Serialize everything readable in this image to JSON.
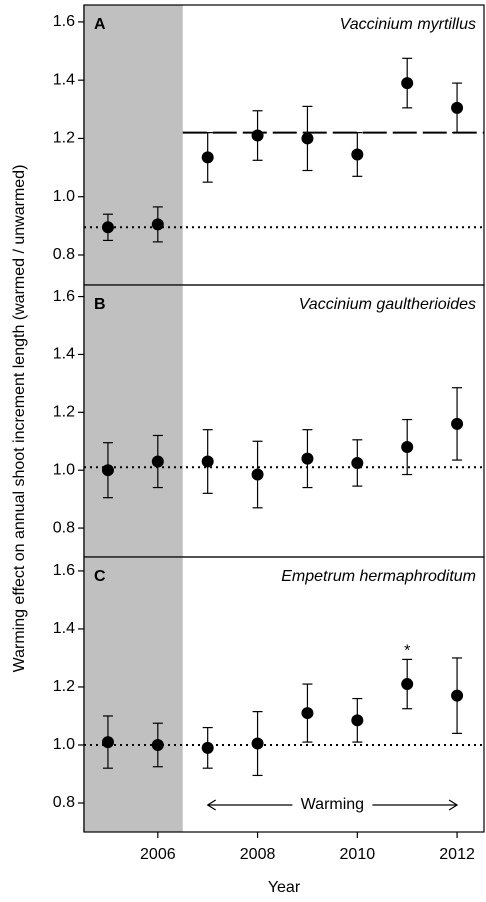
{
  "chart_data": [
    {
      "type": "errorbar",
      "panel_label": "A",
      "title": "Vaccinium myrtillus",
      "x": [
        2005,
        2006,
        2007,
        2008,
        2009,
        2010,
        2011,
        2012
      ],
      "values": [
        0.895,
        0.905,
        1.135,
        1.21,
        1.2,
        1.145,
        1.39,
        1.305
      ],
      "errors": [
        0.045,
        0.06,
        0.085,
        0.085,
        0.11,
        0.075,
        0.085,
        0.085
      ],
      "color": "#000000",
      "shade": [
        2004.5,
        2006.5
      ],
      "shade_color": "#c0c0c0",
      "hlines": [
        {
          "value": 0.895,
          "style": "dotted"
        },
        {
          "value": 1.22,
          "style": "dashed",
          "from": 2006.5
        }
      ],
      "xlim": [
        2004.52,
        2012.54
      ],
      "ylim": [
        0.697,
        1.658
      ],
      "yticks": [
        0.8,
        {
          "value": 1,
          "label": "1.0"
        },
        1.2,
        1.4,
        1.6
      ]
    },
    {
      "type": "errorbar",
      "panel_label": "B",
      "title": "Vaccinium gaultherioides",
      "x": [
        2005,
        2006,
        2007,
        2008,
        2009,
        2010,
        2011,
        2012
      ],
      "values": [
        1.0,
        1.03,
        1.03,
        0.985,
        1.04,
        1.025,
        1.08,
        1.16
      ],
      "errors": [
        0.095,
        0.09,
        0.11,
        0.115,
        0.1,
        0.08,
        0.095,
        0.125
      ],
      "color": "#000000",
      "shade": [
        2004.5,
        2006.5
      ],
      "shade_color": "#c0c0c0",
      "hlines": [
        {
          "value": 1.01,
          "style": "dotted"
        }
      ],
      "xlim": [
        2004.52,
        2012.54
      ],
      "ylim": [
        0.7,
        1.64
      ],
      "yticks": [
        0.8,
        {
          "value": 1,
          "label": "1.0"
        },
        1.2,
        1.4,
        1.6
      ]
    },
    {
      "type": "errorbar",
      "panel_label": "C",
      "title": "Empetrum hermaphroditum",
      "x": [
        2005,
        2006,
        2007,
        2008,
        2009,
        2010,
        2011,
        2012
      ],
      "values": [
        1.01,
        1.0,
        0.99,
        1.005,
        1.11,
        1.085,
        1.21,
        1.17
      ],
      "errors": [
        0.09,
        0.075,
        0.07,
        0.11,
        0.1,
        0.075,
        0.085,
        0.13
      ],
      "color": "#000000",
      "shade": [
        2004.5,
        2006.5
      ],
      "shade_color": "#c0c0c0",
      "hlines": [
        {
          "value": 1.0,
          "style": "dotted"
        }
      ],
      "annotations": [
        {
          "text": "*",
          "x": 2011
        },
        {
          "text": "Warming",
          "x": [
            2007,
            2012
          ]
        }
      ],
      "xlim": [
        2004.52,
        2012.54
      ],
      "ylim": [
        0.7,
        1.648
      ],
      "yticks": [
        0.8,
        {
          "value": 1,
          "label": "1.0"
        },
        1.2,
        1.4,
        1.6
      ],
      "xticks": [
        2006,
        2008,
        2010,
        2012
      ],
      "xlabel": "Year",
      "ylabel": "Warming effect on annual shoot increment length (warmed / unwarmed)"
    }
  ]
}
